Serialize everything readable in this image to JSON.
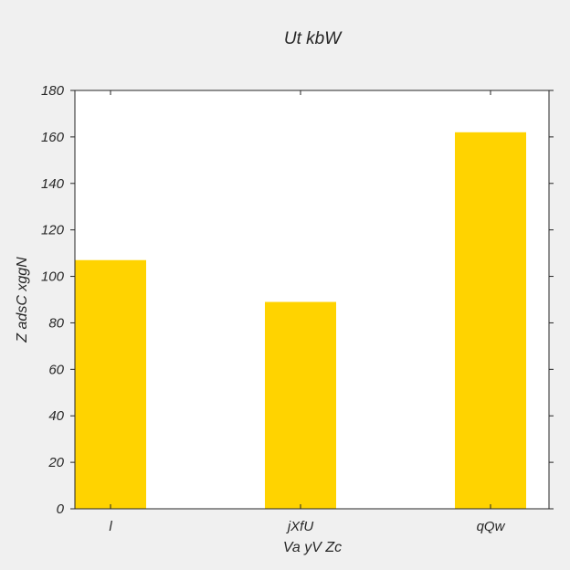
{
  "chart_data": {
    "type": "bar",
    "title": "Ut  kbW",
    "xlabel": "Va  yV Zc",
    "ylabel": "Z adsC xggN",
    "categories": [
      "l",
      "jXfU",
      "qQw"
    ],
    "values": [
      107,
      89,
      162
    ],
    "ylim": [
      0,
      180
    ],
    "yticks": [
      0,
      20,
      40,
      60,
      80,
      100,
      120,
      140,
      160,
      180
    ],
    "bar_color": "#ffd300",
    "grid": false,
    "legend": "none"
  }
}
